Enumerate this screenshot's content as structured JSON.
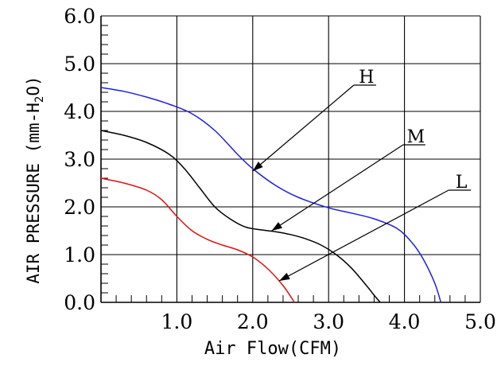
{
  "chart_data": {
    "type": "line",
    "xlabel": "Air Flow(CFM)",
    "ylabel": "AIR PRESSURE (mm-H2O)",
    "ylabel_parts": {
      "prefix": "AIR PRESSURE (mm-H",
      "sub": "2",
      "suffix": "O)"
    },
    "xlim": [
      0,
      5.0
    ],
    "ylim": [
      0,
      6.0
    ],
    "x_ticks": [
      "1.0",
      "2.0",
      "3.0",
      "4.0",
      "5.0"
    ],
    "y_ticks": [
      "0.0",
      "1.0",
      "2.0",
      "3.0",
      "4.0",
      "5.0",
      "6.0"
    ],
    "grid": true,
    "series": [
      {
        "name": "H",
        "color": "#1f1fe0",
        "x": [
          0.0,
          0.3,
          0.6,
          0.9,
          1.2,
          1.5,
          1.8,
          2.0,
          2.3,
          2.6,
          3.0,
          3.3,
          3.6,
          3.9,
          4.1,
          4.25,
          4.4,
          4.48
        ],
        "y": [
          4.5,
          4.42,
          4.3,
          4.15,
          3.95,
          3.6,
          3.1,
          2.8,
          2.45,
          2.2,
          1.98,
          1.87,
          1.75,
          1.55,
          1.25,
          0.9,
          0.4,
          0.0
        ]
      },
      {
        "name": "M",
        "color": "#000000",
        "x": [
          0.0,
          0.3,
          0.6,
          0.9,
          1.1,
          1.3,
          1.5,
          1.7,
          1.9,
          2.1,
          2.3,
          2.5,
          2.7,
          2.9,
          3.1,
          3.3,
          3.5,
          3.6,
          3.68
        ],
        "y": [
          3.6,
          3.5,
          3.35,
          3.1,
          2.8,
          2.4,
          2.0,
          1.75,
          1.58,
          1.52,
          1.48,
          1.42,
          1.33,
          1.2,
          1.0,
          0.72,
          0.35,
          0.15,
          0.0
        ]
      },
      {
        "name": "L",
        "color": "#e01010",
        "x": [
          0.0,
          0.3,
          0.6,
          0.8,
          1.0,
          1.2,
          1.4,
          1.6,
          1.8,
          2.0,
          2.2,
          2.4,
          2.55
        ],
        "y": [
          2.6,
          2.5,
          2.35,
          2.15,
          1.8,
          1.5,
          1.32,
          1.2,
          1.1,
          0.95,
          0.7,
          0.35,
          0.0
        ]
      }
    ],
    "annotations": [
      {
        "text": "H",
        "x": 3.5,
        "y": 4.55,
        "arrow_to": [
          2.0,
          2.75
        ]
      },
      {
        "text": "M",
        "x": 4.15,
        "y": 3.3,
        "arrow_to": [
          2.25,
          1.5
        ]
      },
      {
        "text": "L",
        "x": 4.75,
        "y": 2.35,
        "arrow_to": [
          2.35,
          0.45
        ]
      }
    ]
  }
}
